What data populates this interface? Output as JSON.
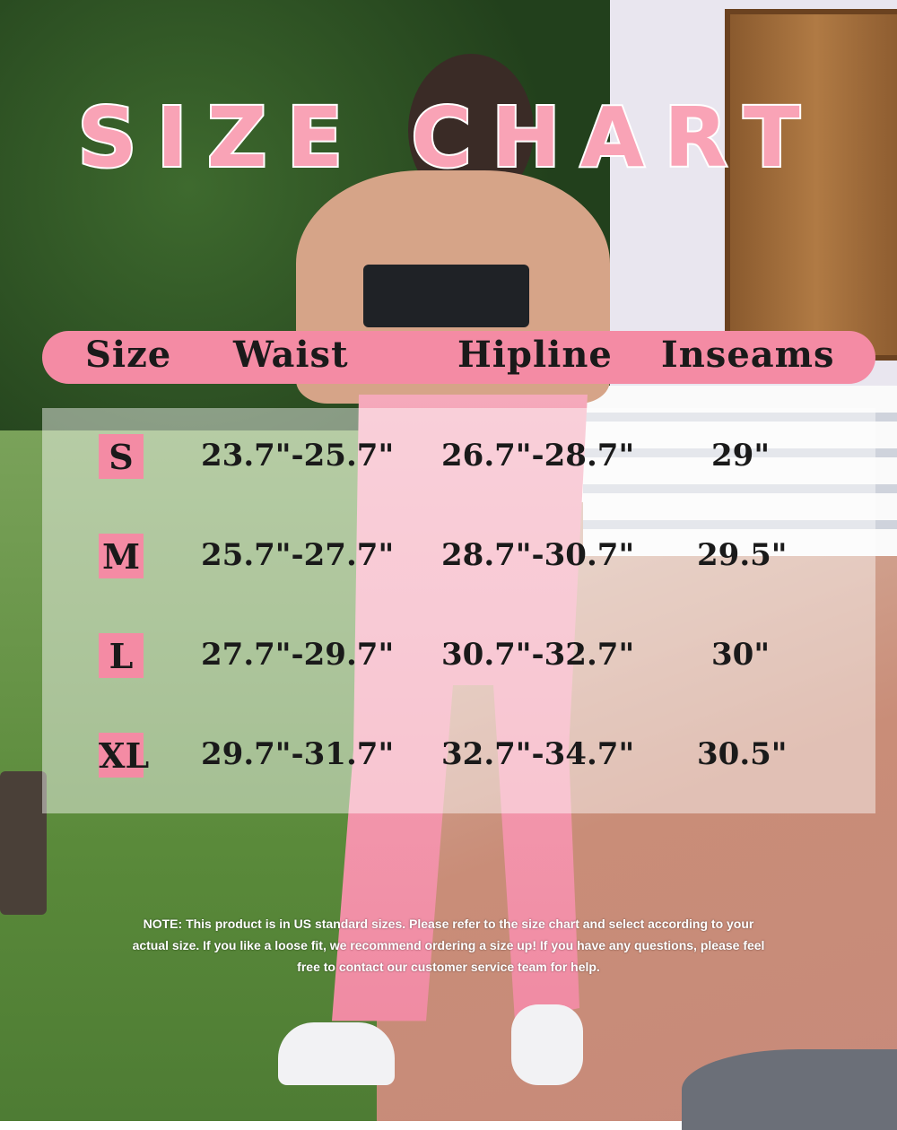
{
  "title": "SIZE CHART",
  "colors": {
    "accent": "#f48ba4",
    "title": "#f9a3b6"
  },
  "table": {
    "headers": [
      "Size",
      "Waist",
      "Hipline",
      "Inseams"
    ],
    "rows": [
      {
        "size": "S",
        "waist": "23.7\"-25.7\"",
        "hipline": "26.7\"-28.7\"",
        "inseams": "29\""
      },
      {
        "size": "M",
        "waist": "25.7\"-27.7\"",
        "hipline": "28.7\"-30.7\"",
        "inseams": "29.5\""
      },
      {
        "size": "L",
        "waist": "27.7\"-29.7\"",
        "hipline": "30.7\"-32.7\"",
        "inseams": "30\""
      },
      {
        "size": "XL",
        "waist": "29.7\"-31.7\"",
        "hipline": "32.7\"-34.7\"",
        "inseams": "30.5\""
      }
    ]
  },
  "note": "NOTE:  This product is in US standard sizes. Please refer to the size chart and select according to your actual size. If you like a loose fit, we  recommend ordering a size up! If you have any questions, please feel free to contact our customer service team for help."
}
